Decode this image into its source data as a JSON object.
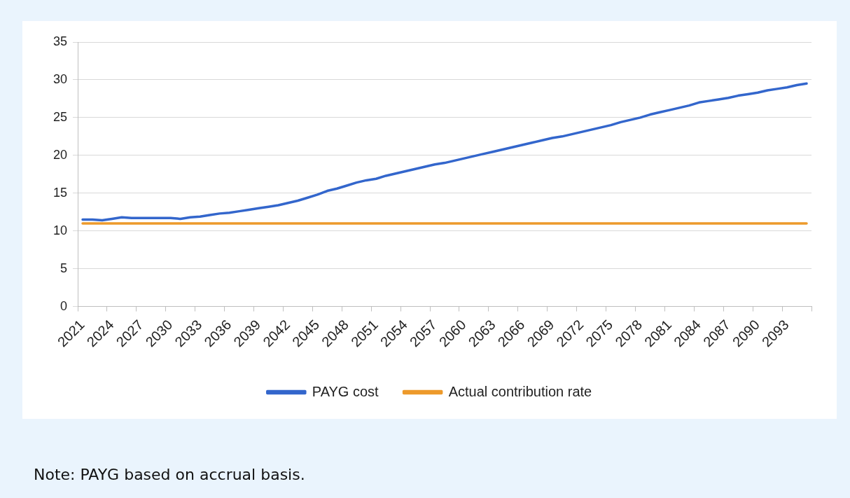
{
  "chart_data": {
    "type": "line",
    "categories": [
      "2021",
      null,
      null,
      "2024",
      null,
      null,
      "2027",
      null,
      null,
      "2030",
      null,
      null,
      "2033",
      null,
      null,
      "2036",
      null,
      null,
      "2039",
      null,
      null,
      "2042",
      null,
      null,
      "2045",
      null,
      null,
      "2048",
      null,
      null,
      "2051",
      null,
      null,
      "2054",
      null,
      null,
      "2057",
      null,
      null,
      "2060",
      null,
      null,
      "2063",
      null,
      null,
      "2066",
      null,
      null,
      "2069",
      null,
      null,
      "2072",
      null,
      null,
      "2075",
      null,
      null,
      "2078",
      null,
      null,
      "2081",
      null,
      null,
      "2084",
      null,
      null,
      "2087",
      null,
      null,
      "2090",
      null,
      null,
      "2093",
      null,
      null
    ],
    "series": [
      {
        "name": "PAYG cost",
        "color": "#3366cc",
        "values": [
          11.5,
          11.5,
          11.4,
          11.6,
          11.8,
          11.7,
          11.7,
          11.7,
          11.7,
          11.7,
          11.6,
          11.8,
          11.9,
          12.1,
          12.3,
          12.4,
          12.6,
          12.8,
          13.0,
          13.2,
          13.4,
          13.7,
          14.0,
          14.4,
          14.8,
          15.3,
          15.6,
          16.0,
          16.4,
          16.7,
          16.9,
          17.3,
          17.6,
          17.9,
          18.2,
          18.5,
          18.8,
          19.0,
          19.3,
          19.6,
          19.9,
          20.2,
          20.5,
          20.8,
          21.1,
          21.4,
          21.7,
          22.0,
          22.3,
          22.5,
          22.8,
          23.1,
          23.4,
          23.7,
          24.0,
          24.4,
          24.7,
          25.0,
          25.4,
          25.7,
          26.0,
          26.3,
          26.6,
          27.0,
          27.2,
          27.4,
          27.6,
          27.9,
          28.1,
          28.3,
          28.6,
          28.8,
          29.0,
          29.3,
          29.5
        ]
      },
      {
        "name": "Actual contribution rate",
        "color": "#ed9a2b",
        "values": [
          11,
          11,
          11,
          11,
          11,
          11,
          11,
          11,
          11,
          11,
          11,
          11,
          11,
          11,
          11,
          11,
          11,
          11,
          11,
          11,
          11,
          11,
          11,
          11,
          11,
          11,
          11,
          11,
          11,
          11,
          11,
          11,
          11,
          11,
          11,
          11,
          11,
          11,
          11,
          11,
          11,
          11,
          11,
          11,
          11,
          11,
          11,
          11,
          11,
          11,
          11,
          11,
          11,
          11,
          11,
          11,
          11,
          11,
          11,
          11,
          11,
          11,
          11,
          11,
          11,
          11,
          11,
          11,
          11,
          11,
          11,
          11,
          11,
          11,
          11
        ]
      }
    ],
    "ylim": [
      0,
      35
    ],
    "yticks": [
      0,
      5,
      10,
      15,
      20,
      25,
      30,
      35
    ],
    "grid": "y",
    "legend": "bottom",
    "marker": "none",
    "line_style": "solid",
    "annotations": [
      "Note: PAYG based on accrual basis."
    ]
  }
}
